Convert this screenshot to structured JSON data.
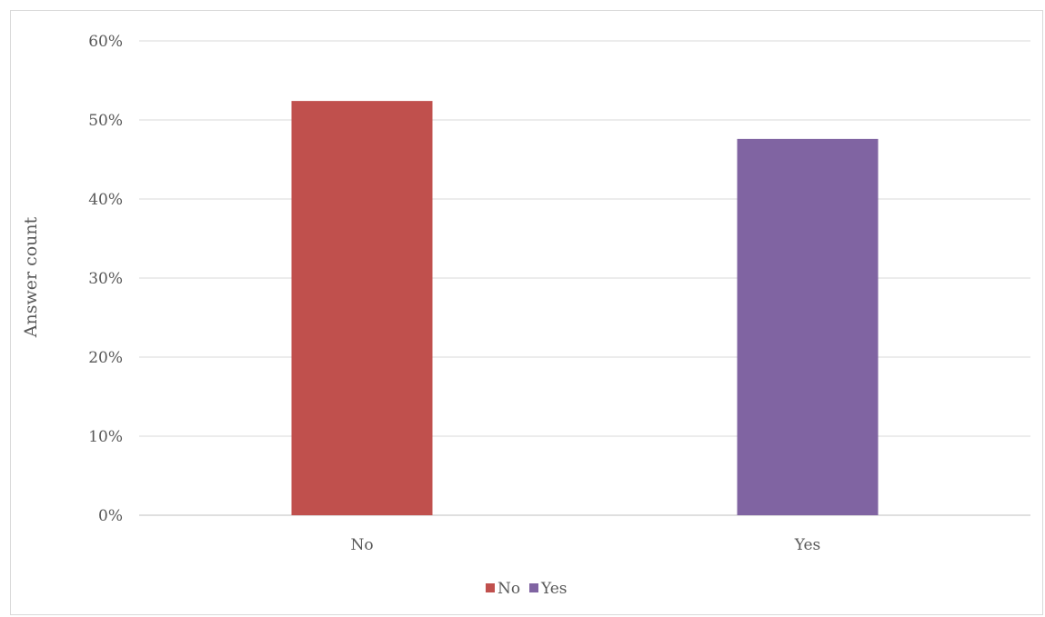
{
  "chart_data": {
    "type": "bar",
    "categories": [
      "No",
      "Yes"
    ],
    "values": [
      52.4,
      47.6
    ],
    "colors": [
      "#c0504d",
      "#8064a2"
    ],
    "value_unit": "%",
    "ylabel": "Answer count",
    "xlabel": "",
    "ylim": [
      0,
      60
    ],
    "yticks": [
      0,
      10,
      20,
      30,
      40,
      50,
      60
    ],
    "ytick_labels": [
      "0%",
      "10%",
      "20%",
      "30%",
      "40%",
      "50%",
      "60%"
    ],
    "grid": true,
    "legend": {
      "position": "bottom",
      "entries": [
        {
          "label": "No",
          "color": "#c0504d"
        },
        {
          "label": "Yes",
          "color": "#8064a2"
        }
      ]
    }
  }
}
